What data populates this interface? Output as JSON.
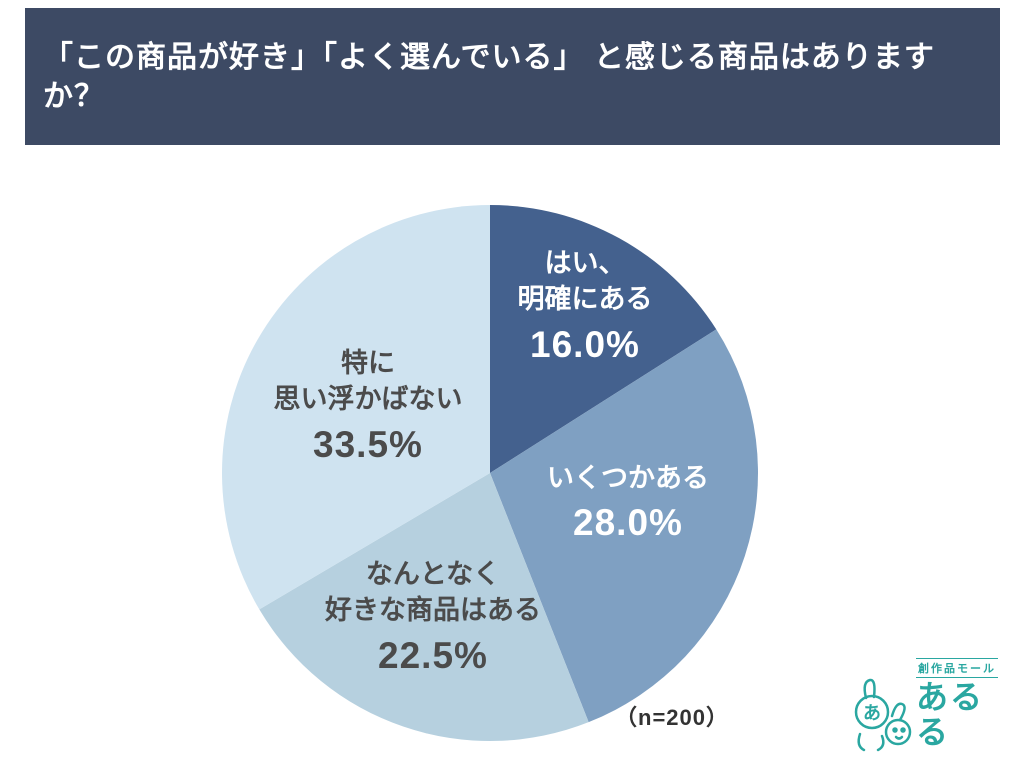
{
  "header": {
    "title": "「この商品が好き」「よく選んでいる」 と感じる商品はありますか？"
  },
  "chart_data": {
    "type": "pie",
    "title": "「この商品が好き」「よく選んでいる」 と感じる商品はありますか？",
    "sample_size_label": "（n=200）",
    "start_angle": "top",
    "direction": "clockwise",
    "total": 100,
    "slices": [
      {
        "label": "はい、明確にある",
        "label_lines": [
          "はい、",
          "明確にある"
        ],
        "value": 16.0,
        "pct_label": "16.0%",
        "color": "#44618e",
        "text_color": "#ffffff"
      },
      {
        "label": "いくつかある",
        "label_lines": [
          "いくつかある"
        ],
        "value": 28.0,
        "pct_label": "28.0%",
        "color": "#7fa0c2",
        "text_color": "#ffffff"
      },
      {
        "label": "なんとなく好きな商品はある",
        "label_lines": [
          "なんとなく",
          "好きな商品はある"
        ],
        "value": 22.5,
        "pct_label": "22.5%",
        "color": "#b6d0df",
        "text_color": "#4b4b4b"
      },
      {
        "label": "特に思い浮かばない",
        "label_lines": [
          "特に",
          "思い浮かばない"
        ],
        "value": 33.5,
        "pct_label": "33.5%",
        "color": "#cfe3f0",
        "text_color": "#4b4b4b"
      }
    ]
  },
  "footer": {
    "sample_size": "（n=200）"
  },
  "logo": {
    "brand": "あるる",
    "tagline": "創作品モール",
    "color": "#2aa7a1"
  }
}
